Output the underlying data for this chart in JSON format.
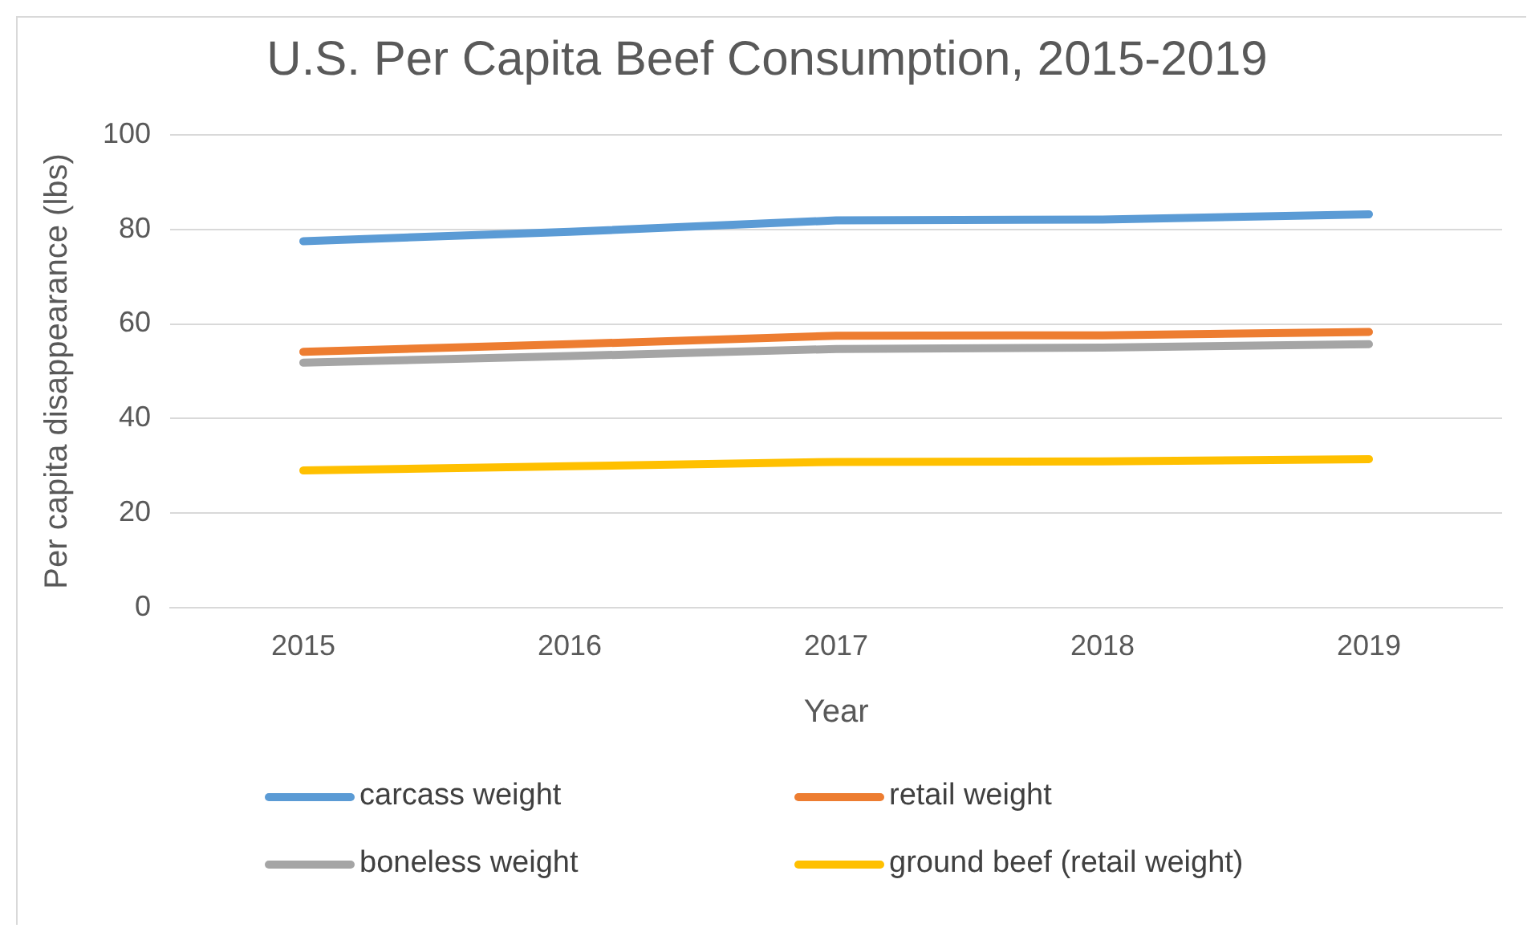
{
  "chart_data": {
    "type": "line",
    "title": "U.S. Per Capita Beef Consumption, 2015-2019",
    "xlabel": "Year",
    "ylabel": "Per capita disappearance (lbs)",
    "categories": [
      "2015",
      "2016",
      "2017",
      "2018",
      "2019"
    ],
    "series": [
      {
        "name": "carcass weight",
        "color": "#5b9bd5",
        "values": [
          77.5,
          79.5,
          81.9,
          82.1,
          83.2
        ]
      },
      {
        "name": "retail weight",
        "color": "#ed7d31",
        "values": [
          54.1,
          55.7,
          57.5,
          57.6,
          58.3
        ]
      },
      {
        "name": "boneless weight",
        "color": "#a5a5a5",
        "values": [
          51.8,
          53.2,
          54.7,
          55.0,
          55.7
        ]
      },
      {
        "name": "ground beef (retail weight)",
        "color": "#ffc000",
        "values": [
          29,
          29.9,
          30.8,
          30.9,
          31.4
        ]
      }
    ],
    "ylim": [
      0,
      100
    ],
    "yticks": [
      0,
      20,
      40,
      60,
      80,
      100
    ],
    "grid": "y",
    "legend": "bottom",
    "marker": "none",
    "line_style": "solid"
  }
}
